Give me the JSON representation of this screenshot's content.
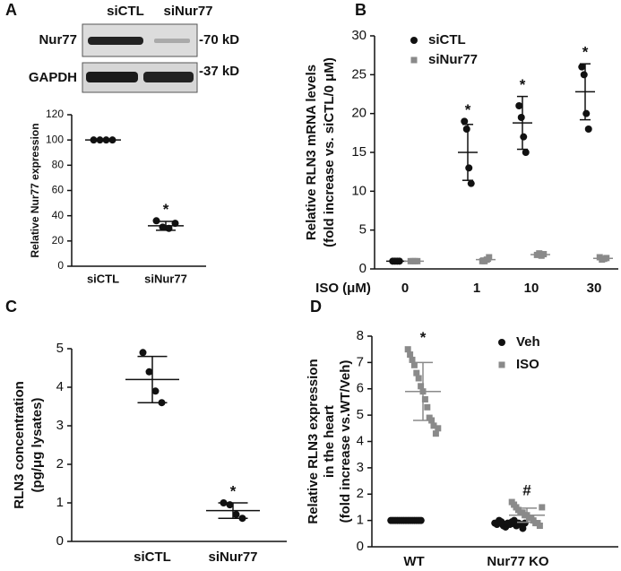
{
  "blot": {
    "panel": "A",
    "lanes": [
      "siCTL",
      "siNur77"
    ],
    "rows": [
      {
        "name": "Nur77",
        "size": "-70 kD"
      },
      {
        "name": "GAPDH",
        "size": "-37 kD"
      }
    ]
  },
  "chart_data": [
    {
      "type": "dot",
      "ylabel": "Relative Nur77 expression",
      "categories": [
        "siCTL",
        "siNur77"
      ],
      "values": [
        [
          100,
          100,
          100,
          100
        ],
        [
          36,
          31,
          30,
          34
        ]
      ],
      "mean": [
        100,
        32
      ],
      "sd": [
        0.5,
        3.5
      ],
      "annotations": [
        null,
        "*"
      ],
      "color": "#111111",
      "marker": "circle",
      "ylim": [
        0,
        120
      ],
      "yticks": [
        0,
        20,
        40,
        60,
        80,
        100,
        120
      ]
    },
    {
      "type": "dot",
      "panel": "B",
      "ylabel": [
        "Relative RLN3 mRNA levels",
        "(fold increase vs. siCTL/0 μM)"
      ],
      "xlabel": "ISO (μM)",
      "categories": [
        "0",
        "1",
        "10",
        "30"
      ],
      "series": [
        {
          "name": "siCTL",
          "color": "#111111",
          "marker": "circle",
          "values": [
            [
              1,
              1,
              1,
              1
            ],
            [
              19,
              18,
              13,
              11
            ],
            [
              21,
              19.5,
              17,
              15
            ],
            [
              26,
              25,
              20,
              18
            ]
          ],
          "mean": [
            1,
            15,
            18.8,
            22.8
          ],
          "sd": [
            0.1,
            3.6,
            3.4,
            3.6
          ],
          "annotations": [
            null,
            "*",
            "*",
            "*"
          ]
        },
        {
          "name": "siNur77",
          "color": "#8a8a8a",
          "marker": "square",
          "values": [
            [
              1,
              1,
              1,
              1
            ],
            [
              1,
              1,
              1.2,
              1.5
            ],
            [
              1.8,
              2,
              1.7,
              1.9
            ],
            [
              1.5,
              1.2,
              1.3,
              1.4
            ]
          ],
          "mean": [
            1,
            1.2,
            1.85,
            1.35
          ],
          "sd": [
            0.1,
            0.2,
            0.15,
            0.15
          ],
          "annotations": [
            null,
            null,
            null,
            null
          ]
        }
      ],
      "ylim": [
        0,
        30
      ],
      "yticks": [
        0,
        5,
        10,
        15,
        20,
        25,
        30
      ]
    },
    {
      "type": "dot",
      "panel": "C",
      "ylabel": [
        "RLN3 concentration",
        "(pg/μg lysates)"
      ],
      "categories": [
        "siCTL",
        "siNur77"
      ],
      "values": [
        [
          4.9,
          4.4,
          3.9,
          3.6
        ],
        [
          1.0,
          0.95,
          0.7,
          0.6
        ]
      ],
      "mean": [
        4.2,
        0.8
      ],
      "sd": [
        0.6,
        0.2
      ],
      "annotations": [
        null,
        "*"
      ],
      "color": "#111111",
      "marker": "circle",
      "ylim": [
        0,
        5
      ],
      "yticks": [
        0,
        1,
        2,
        3,
        4,
        5
      ]
    },
    {
      "type": "dot",
      "panel": "D",
      "ylabel": [
        "Relative RLN3 expression",
        "in the heart",
        "(fold increase vs.WT/Veh)"
      ],
      "categories": [
        "WT",
        "Nur77 KO"
      ],
      "series": [
        {
          "name": "Veh",
          "color": "#111111",
          "marker": "circle",
          "values": [
            [
              1,
              1,
              1,
              1,
              1,
              1,
              1,
              1,
              1,
              1,
              1,
              1,
              1,
              1,
              1
            ],
            [
              0.9,
              0.85,
              1.0,
              0.95,
              0.8,
              0.75,
              0.9,
              0.85,
              0.95,
              1.0,
              0.8,
              0.9,
              0.85,
              0.7,
              0.9
            ]
          ],
          "mean": [
            1,
            0.87
          ],
          "sd": [
            0.05,
            0.09
          ],
          "annotations": [
            null,
            null
          ]
        },
        {
          "name": "ISO",
          "color": "#8a8a8a",
          "marker": "square",
          "values": [
            [
              7.5,
              7.3,
              7.1,
              6.9,
              6.6,
              6.4,
              6.1,
              5.9,
              5.6,
              5.3,
              4.9,
              4.8,
              4.6,
              4.3,
              4.5
            ],
            [
              1.7,
              1.6,
              1.5,
              1.4,
              1.3,
              1.3,
              1.2,
              1.2,
              1.1,
              1.1,
              1.0,
              0.9,
              0.9,
              0.8,
              1.5
            ]
          ],
          "mean": [
            5.9,
            1.2
          ],
          "sd": [
            1.1,
            0.27
          ],
          "annotations": [
            "*",
            "#"
          ]
        }
      ],
      "ylim": [
        0,
        8
      ],
      "yticks": [
        0,
        1,
        2,
        3,
        4,
        5,
        6,
        7,
        8
      ]
    }
  ]
}
